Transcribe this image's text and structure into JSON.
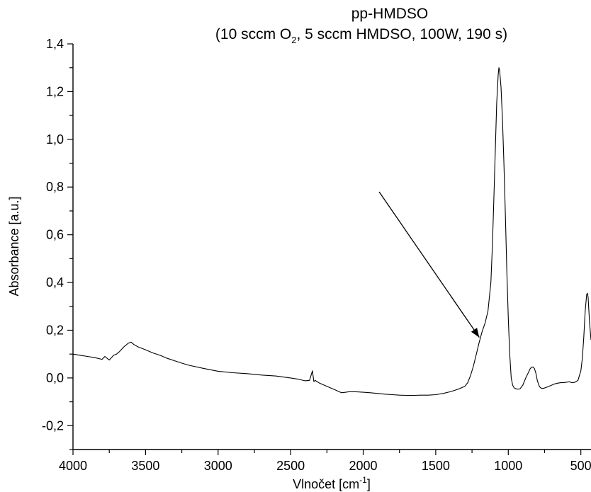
{
  "chart_data": {
    "type": "line",
    "title": "pp-HMDSO",
    "subtitle": {
      "prefix": "(10 sccm O",
      "subscript": "2",
      "suffix": ", 5 sccm HMDSO, 100W, 190 s)"
    },
    "xlabel": {
      "text": "Vlnočet [cm",
      "superscript": "-1",
      "close": "]"
    },
    "ylabel": "Absorbance [a.u.]",
    "xlim": [
      4000,
      430
    ],
    "ylim": [
      -0.3,
      1.4
    ],
    "x_reversed": true,
    "x_ticks": [
      {
        "value": 4000,
        "label": "4000"
      },
      {
        "value": 3500,
        "label": "3500"
      },
      {
        "value": 3000,
        "label": "3000"
      },
      {
        "value": 2500,
        "label": "2500"
      },
      {
        "value": 2000,
        "label": "2000"
      },
      {
        "value": 1500,
        "label": "1500"
      },
      {
        "value": 1000,
        "label": "1000"
      },
      {
        "value": 500,
        "label": "500"
      }
    ],
    "y_ticks": [
      {
        "value": -0.2,
        "label": "-0,2"
      },
      {
        "value": 0.0,
        "label": "0,0"
      },
      {
        "value": 0.2,
        "label": "0,2"
      },
      {
        "value": 0.4,
        "label": "0,4"
      },
      {
        "value": 0.6,
        "label": "0,6"
      },
      {
        "value": 0.8,
        "label": "0,8"
      },
      {
        "value": 1.0,
        "label": "1,0"
      },
      {
        "value": 1.2,
        "label": "1,2"
      },
      {
        "value": 1.4,
        "label": "1,4"
      }
    ],
    "grid": false,
    "legend": "none",
    "series": [
      {
        "x": [
          4000,
          3950,
          3900,
          3850,
          3800,
          3780,
          3750,
          3720,
          3700,
          3680,
          3650,
          3620,
          3600,
          3580,
          3550,
          3500,
          3450,
          3400,
          3350,
          3300,
          3250,
          3200,
          3100,
          3000,
          2900,
          2800,
          2700,
          2600,
          2500,
          2450,
          2400,
          2370,
          2350,
          2340,
          2330,
          2320,
          2300,
          2250,
          2200,
          2150,
          2120,
          2100,
          2050,
          2000,
          1950,
          1900,
          1850,
          1800,
          1750,
          1700,
          1650,
          1600,
          1550,
          1500,
          1450,
          1400,
          1350,
          1300,
          1280,
          1260,
          1240,
          1220,
          1200,
          1180,
          1160,
          1140,
          1120,
          1110,
          1100,
          1090,
          1080,
          1070,
          1065,
          1060,
          1050,
          1040,
          1030,
          1020,
          1010,
          1000,
          990,
          980,
          970,
          960,
          940,
          920,
          900,
          880,
          860,
          850,
          840,
          830,
          820,
          810,
          800,
          790,
          780,
          770,
          760,
          740,
          720,
          700,
          680,
          660,
          640,
          620,
          600,
          580,
          560,
          540,
          520,
          500,
          490,
          480,
          470,
          460,
          455,
          450,
          440,
          430
        ],
        "y": [
          0.1,
          0.095,
          0.09,
          0.085,
          0.078,
          0.09,
          0.075,
          0.095,
          0.1,
          0.11,
          0.13,
          0.145,
          0.15,
          0.14,
          0.13,
          0.118,
          0.105,
          0.095,
          0.082,
          0.072,
          0.062,
          0.053,
          0.04,
          0.028,
          0.022,
          0.018,
          0.012,
          0.008,
          0.0,
          -0.005,
          -0.012,
          -0.01,
          0.03,
          -0.015,
          -0.01,
          -0.015,
          -0.022,
          -0.035,
          -0.048,
          -0.062,
          -0.06,
          -0.058,
          -0.058,
          -0.06,
          -0.062,
          -0.065,
          -0.068,
          -0.07,
          -0.072,
          -0.073,
          -0.073,
          -0.072,
          -0.072,
          -0.07,
          -0.065,
          -0.058,
          -0.048,
          -0.035,
          -0.02,
          0.01,
          0.05,
          0.1,
          0.15,
          0.195,
          0.23,
          0.28,
          0.4,
          0.55,
          0.74,
          0.95,
          1.15,
          1.27,
          1.3,
          1.29,
          1.22,
          1.08,
          0.9,
          0.68,
          0.45,
          0.25,
          0.1,
          0.0,
          -0.03,
          -0.042,
          -0.047,
          -0.046,
          -0.03,
          0.0,
          0.025,
          0.038,
          0.045,
          0.046,
          0.04,
          0.02,
          -0.01,
          -0.03,
          -0.04,
          -0.044,
          -0.044,
          -0.04,
          -0.035,
          -0.03,
          -0.025,
          -0.022,
          -0.02,
          -0.02,
          -0.018,
          -0.016,
          -0.02,
          -0.018,
          -0.01,
          0.03,
          0.08,
          0.17,
          0.28,
          0.35,
          0.355,
          0.34,
          0.23,
          0.16
        ]
      }
    ],
    "annotations": [
      {
        "type": "arrow",
        "from": [
          1890,
          0.78
        ],
        "to": [
          1200,
          0.17
        ]
      }
    ]
  }
}
